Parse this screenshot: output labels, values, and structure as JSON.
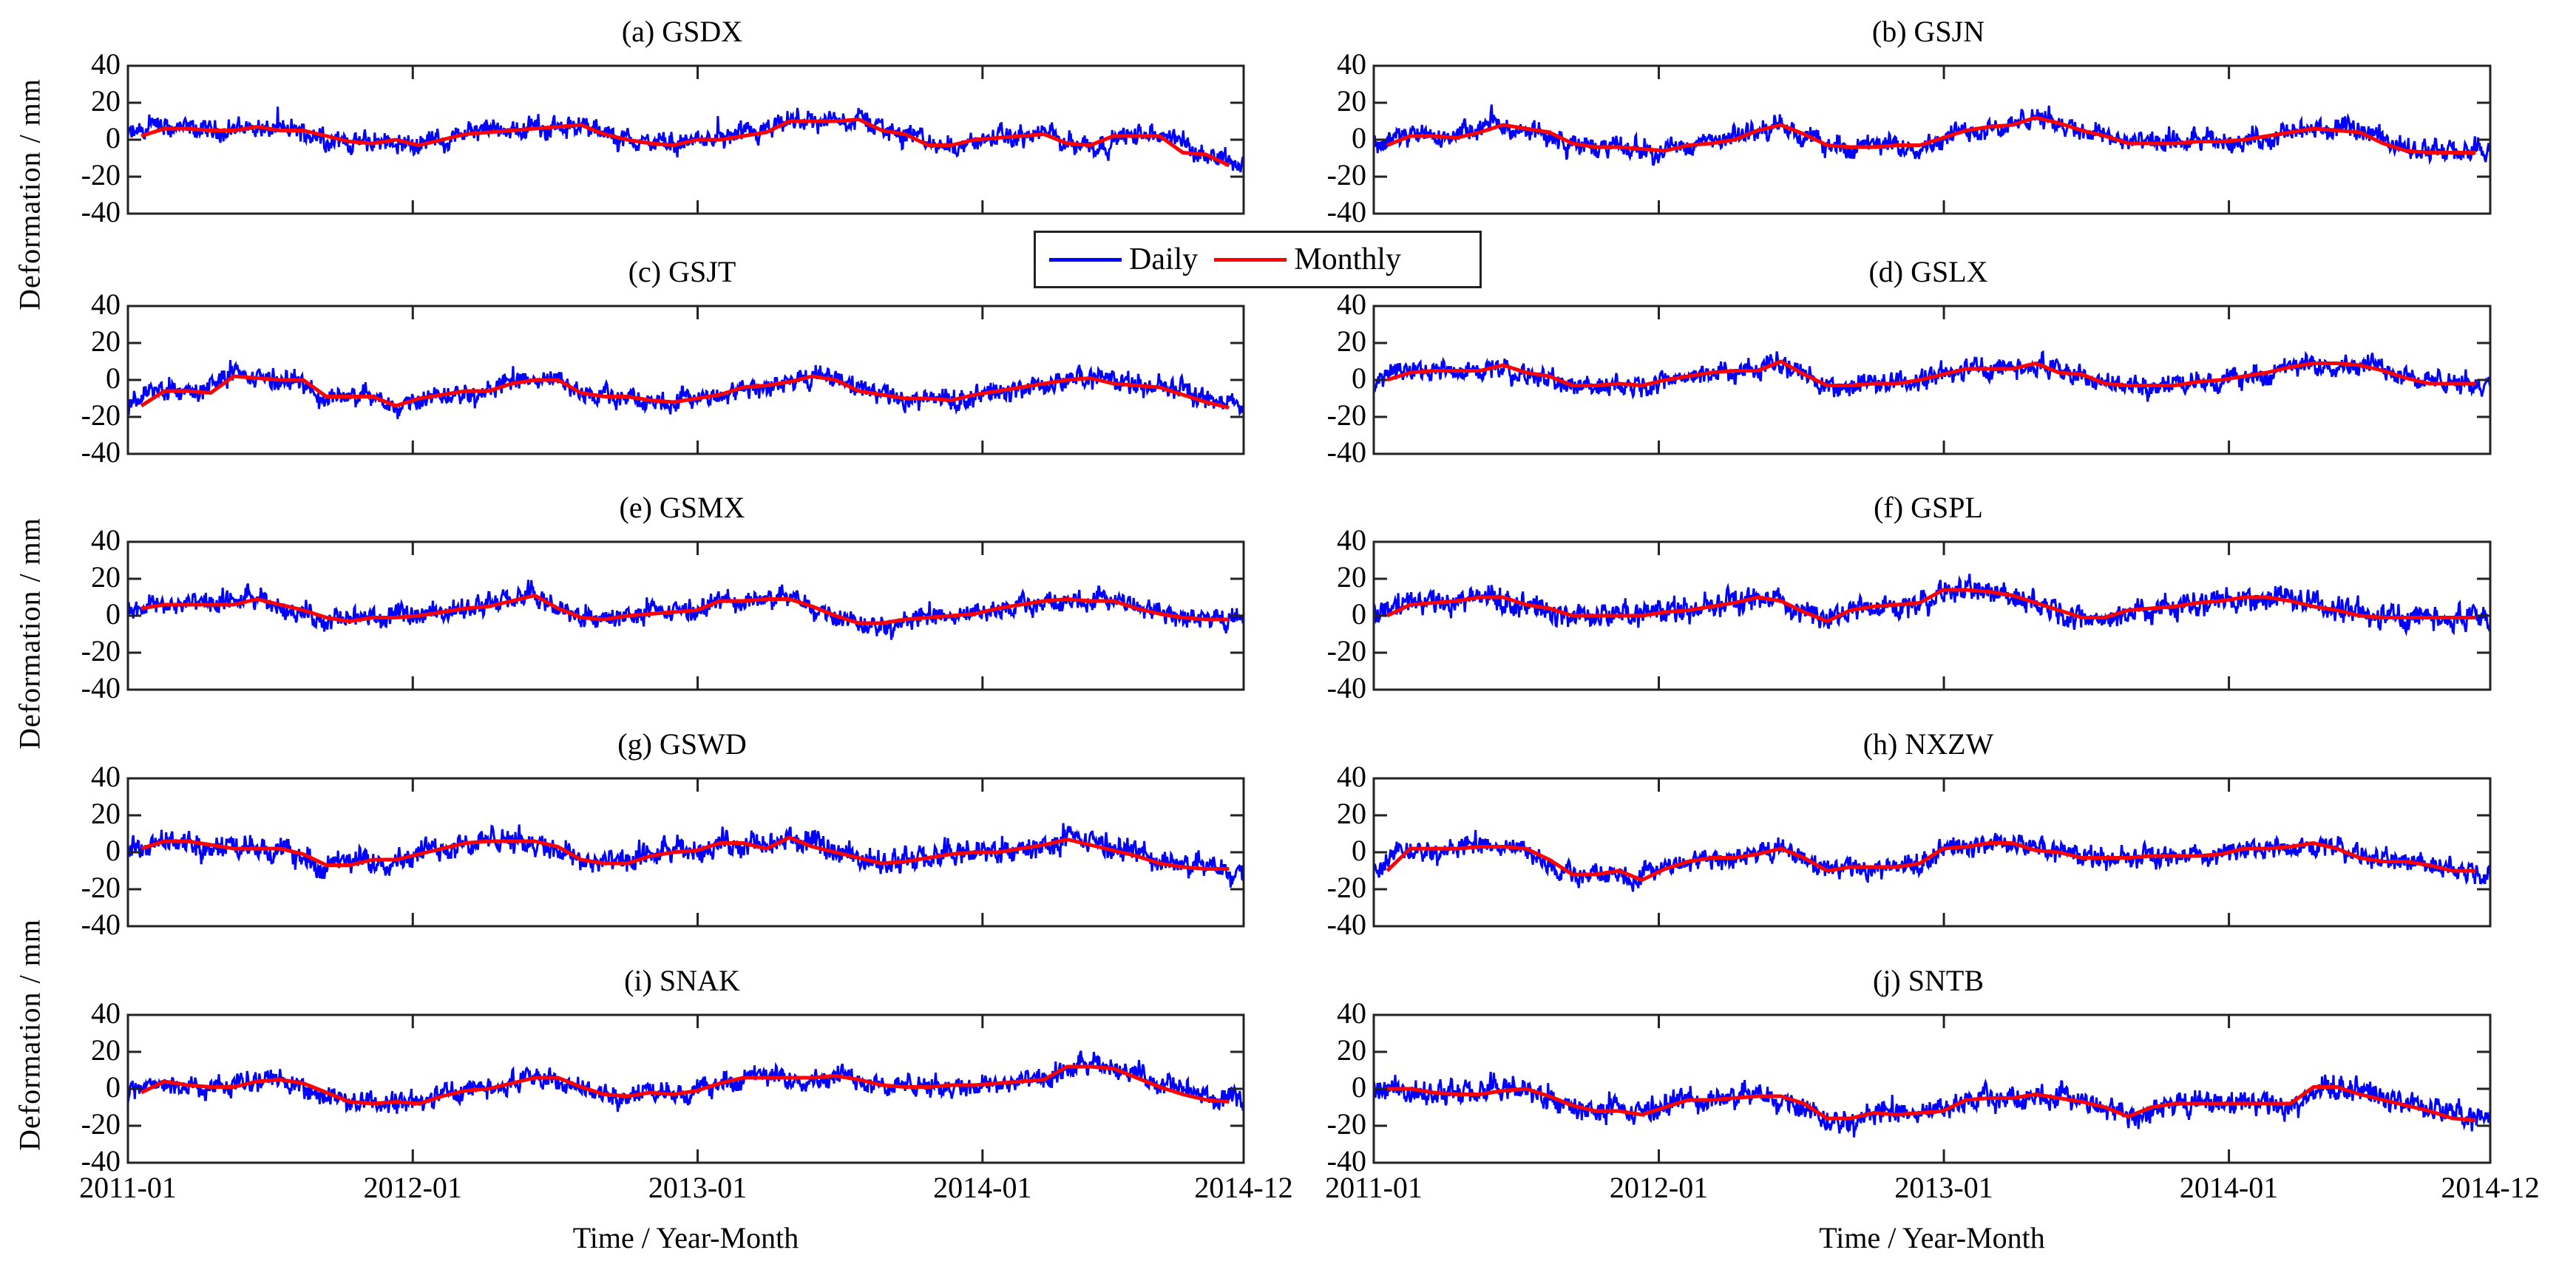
{
  "figure": {
    "ylabel": "Deformation / mm",
    "xlabel": "Time / Year-Month",
    "legend": [
      {
        "label": "Daily",
        "color": "#0000ff"
      },
      {
        "label": "Monthly",
        "color": "#ff0000"
      }
    ],
    "yticks": [
      "40",
      "20",
      "0",
      "-20",
      "-40"
    ],
    "xticks": [
      "2011-01",
      "2012-01",
      "2013-01",
      "2014-01",
      "2014-12"
    ]
  },
  "chart_data": {
    "type": "line",
    "title": "",
    "xlabel": "Time / Year-Month",
    "ylabel": "Deformation / mm",
    "ylim": [
      -40,
      40
    ],
    "xlim": [
      "2011-01",
      "2014-12"
    ],
    "grid": false,
    "legend_position": "upper center (between panels c and d)",
    "legend": [
      "Daily",
      "Monthly"
    ],
    "x_months": [
      "2011-01",
      "2011-02",
      "2011-03",
      "2011-04",
      "2011-05",
      "2011-06",
      "2011-07",
      "2011-08",
      "2011-09",
      "2011-10",
      "2011-11",
      "2011-12",
      "2012-01",
      "2012-02",
      "2012-03",
      "2012-04",
      "2012-05",
      "2012-06",
      "2012-07",
      "2012-08",
      "2012-09",
      "2012-10",
      "2012-11",
      "2012-12",
      "2013-01",
      "2013-02",
      "2013-03",
      "2013-04",
      "2013-05",
      "2013-06",
      "2013-07",
      "2013-08",
      "2013-09",
      "2013-10",
      "2013-11",
      "2013-12",
      "2014-01",
      "2014-02",
      "2014-03",
      "2014-04",
      "2014-05",
      "2014-06",
      "2014-07",
      "2014-08",
      "2014-09",
      "2014-10",
      "2014-11",
      "2014-12"
    ],
    "panels": [
      {
        "label": "(a) GSDX",
        "daily_noise_mm": 6,
        "monthly": [
          2,
          6,
          6,
          5,
          5,
          7,
          5,
          5,
          2,
          -1,
          -2,
          0,
          -3,
          0,
          3,
          4,
          5,
          6,
          7,
          8,
          3,
          0,
          -2,
          -3,
          0,
          0,
          2,
          4,
          10,
          10,
          10,
          11,
          5,
          3,
          -3,
          -3,
          0,
          1,
          2,
          3,
          -2,
          -3,
          2,
          2,
          2,
          -7,
          -8,
          -14
        ]
      },
      {
        "label": "(b) GSJN",
        "daily_noise_mm": 6,
        "monthly": [
          -3,
          2,
          2,
          1,
          4,
          8,
          6,
          4,
          -2,
          -4,
          -4,
          -5,
          -6,
          -3,
          -2,
          0,
          5,
          8,
          3,
          -3,
          -4,
          -4,
          -3,
          -3,
          1,
          5,
          7,
          8,
          12,
          9,
          5,
          2,
          -2,
          -2,
          -2,
          -1,
          -1,
          0,
          2,
          4,
          6,
          5,
          4,
          -2,
          -6,
          -7,
          -7,
          -7
        ]
      },
      {
        "label": "(c) GSJT",
        "daily_noise_mm": 6,
        "monthly": [
          -14,
          -6,
          -6,
          -7,
          2,
          1,
          0,
          0,
          -9,
          -9,
          -9,
          -14,
          -10,
          -8,
          -6,
          -6,
          -2,
          0,
          0,
          -7,
          -9,
          -9,
          -11,
          -12,
          -10,
          -8,
          -4,
          -3,
          -1,
          2,
          0,
          -6,
          -8,
          -10,
          -10,
          -11,
          -8,
          -6,
          -4,
          -2,
          0,
          1,
          -2,
          -3,
          -4,
          -8,
          -12,
          -15
        ]
      },
      {
        "label": "(d) GSLX",
        "daily_noise_mm": 6,
        "monthly": [
          0,
          4,
          5,
          5,
          5,
          8,
          4,
          2,
          -3,
          -3,
          -2,
          -3,
          0,
          2,
          4,
          5,
          5,
          10,
          3,
          -3,
          -3,
          -2,
          -2,
          0,
          3,
          6,
          6,
          6,
          9,
          4,
          3,
          -2,
          -3,
          -3,
          -3,
          -1,
          0,
          2,
          4,
          7,
          9,
          9,
          8,
          5,
          1,
          -2,
          -2,
          -2
        ]
      },
      {
        "label": "(e) GSMX",
        "daily_noise_mm": 6,
        "monthly": [
          4,
          6,
          6,
          6,
          6,
          9,
          6,
          3,
          -1,
          -3,
          -1,
          -1,
          0,
          2,
          4,
          5,
          8,
          11,
          4,
          -1,
          -2,
          0,
          1,
          2,
          3,
          8,
          8,
          9,
          9,
          5,
          0,
          -4,
          -4,
          -2,
          -1,
          0,
          1,
          4,
          6,
          8,
          9,
          8,
          8,
          4,
          1,
          -1,
          -2,
          -2
        ]
      },
      {
        "label": "(f) GSPL",
        "daily_noise_mm": 7,
        "monthly": [
          0,
          6,
          7,
          8,
          10,
          10,
          6,
          4,
          0,
          0,
          0,
          0,
          2,
          3,
          5,
          7,
          10,
          8,
          2,
          -3,
          3,
          5,
          6,
          7,
          14,
          14,
          13,
          11,
          7,
          3,
          -1,
          -1,
          3,
          4,
          5,
          7,
          8,
          10,
          10,
          8,
          5,
          3,
          0,
          -1,
          -1,
          -1,
          -1,
          -1
        ]
      },
      {
        "label": "(g) GSWD",
        "daily_noise_mm": 7,
        "monthly": [
          2,
          6,
          6,
          4,
          2,
          2,
          2,
          -1,
          -7,
          -7,
          -4,
          -4,
          -1,
          2,
          5,
          6,
          6,
          6,
          3,
          -4,
          -6,
          -6,
          -2,
          0,
          1,
          5,
          5,
          2,
          8,
          3,
          0,
          -3,
          -6,
          -5,
          -3,
          -1,
          0,
          0,
          2,
          4,
          7,
          4,
          1,
          -2,
          -6,
          -8,
          -9,
          -9
        ]
      },
      {
        "label": "(h) NXZW",
        "daily_noise_mm": 6,
        "monthly": [
          -10,
          2,
          2,
          2,
          3,
          3,
          2,
          -4,
          -12,
          -12,
          -10,
          -15,
          -9,
          -5,
          -3,
          -3,
          -1,
          2,
          -3,
          -10,
          -8,
          -8,
          -8,
          -6,
          2,
          3,
          5,
          5,
          1,
          0,
          -3,
          -3,
          -3,
          -2,
          -2,
          -2,
          -1,
          2,
          2,
          3,
          5,
          2,
          -3,
          -5,
          -5,
          -7,
          -10,
          -10
        ]
      },
      {
        "label": "(i) SNAK",
        "daily_noise_mm": 6,
        "monthly": [
          -2,
          4,
          2,
          1,
          1,
          4,
          5,
          3,
          -2,
          -7,
          -8,
          -7,
          -8,
          -4,
          -1,
          0,
          3,
          6,
          6,
          1,
          -3,
          -4,
          -2,
          -3,
          -1,
          3,
          6,
          6,
          6,
          6,
          7,
          5,
          2,
          1,
          1,
          2,
          2,
          3,
          4,
          5,
          12,
          12,
          11,
          6,
          1,
          -3,
          -6,
          -7
        ]
      },
      {
        "label": "(j) SNTB",
        "daily_noise_mm": 7,
        "monthly": [
          0,
          0,
          -2,
          -3,
          -3,
          -1,
          0,
          -4,
          -9,
          -12,
          -12,
          -14,
          -10,
          -6,
          -6,
          -5,
          -4,
          -4,
          -8,
          -16,
          -16,
          -13,
          -14,
          -13,
          -12,
          -6,
          -5,
          -5,
          -3,
          -5,
          -7,
          -10,
          -15,
          -10,
          -8,
          -8,
          -8,
          -8,
          -8,
          -8,
          1,
          1,
          -3,
          -6,
          -9,
          -12,
          -16,
          -17
        ]
      }
    ]
  }
}
